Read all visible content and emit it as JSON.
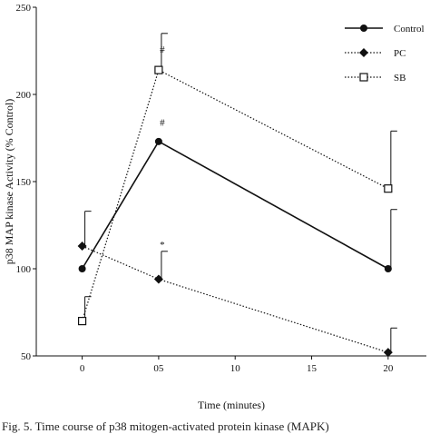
{
  "caption": "Fig. 5. Time course of p38 mitogen-activated protein kinase (MAPK)",
  "chart_data": {
    "type": "line",
    "title": "",
    "xlabel": "Time (minutes)",
    "ylabel": "p38 MAP kinase Activity (% Control)",
    "xlim": [
      -3,
      22.5
    ],
    "ylim": [
      50,
      250
    ],
    "x_ticks": [
      0,
      5,
      10,
      15,
      20
    ],
    "x_tick_labels": [
      "0",
      "05",
      "10",
      "15",
      "20"
    ],
    "y_ticks": [
      50,
      100,
      150,
      200,
      250
    ],
    "y_tick_labels": [
      "50",
      "100",
      "150",
      "200",
      "250"
    ],
    "grid": false,
    "legend_position": "top-right",
    "series": [
      {
        "name": "Control",
        "marker": "circle",
        "line": "solid",
        "x": [
          0,
          5,
          20
        ],
        "y": [
          100,
          173,
          100
        ],
        "error": [
          0,
          0,
          34
        ]
      },
      {
        "name": "PC",
        "marker": "diamond",
        "line": "dotted",
        "x": [
          0,
          5,
          20
        ],
        "y": [
          113,
          94,
          52
        ],
        "error": [
          20,
          16,
          14
        ]
      },
      {
        "name": "SB",
        "marker": "open-square",
        "line": "dotted",
        "x": [
          0,
          5,
          20
        ],
        "y": [
          70,
          214,
          146
        ],
        "error": [
          14,
          21,
          33
        ]
      }
    ],
    "annotations": [
      {
        "text": "#",
        "x": 5,
        "y": 224
      },
      {
        "text": "#",
        "x": 5,
        "y": 182
      },
      {
        "text": "*",
        "x": 5,
        "y": 112
      }
    ]
  }
}
